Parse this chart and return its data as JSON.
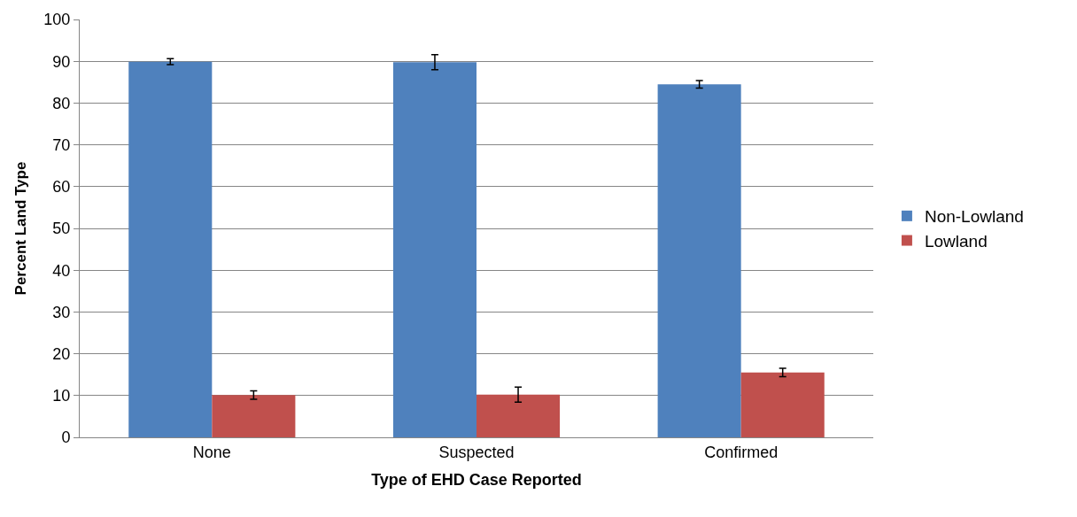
{
  "chart_data": {
    "type": "bar",
    "xlabel": "Type of EHD Case Reported",
    "ylabel": "Percent Land Type",
    "categories": [
      "None",
      "Suspected",
      "Confirmed"
    ],
    "series": [
      {
        "name": "Non-Lowland",
        "color": "#4f81bd",
        "values": [
          89.9,
          89.8,
          84.5
        ],
        "errors": [
          0.7,
          1.8,
          0.9
        ]
      },
      {
        "name": "Lowland",
        "color": "#c0504d",
        "values": [
          10.1,
          10.2,
          15.5
        ],
        "errors": [
          1.0,
          1.8,
          1.0
        ]
      }
    ],
    "ylim": [
      0,
      100
    ],
    "yticks": [
      0,
      10,
      20,
      30,
      40,
      50,
      60,
      70,
      80,
      90,
      100
    ],
    "grid": "y",
    "legend": "right"
  }
}
